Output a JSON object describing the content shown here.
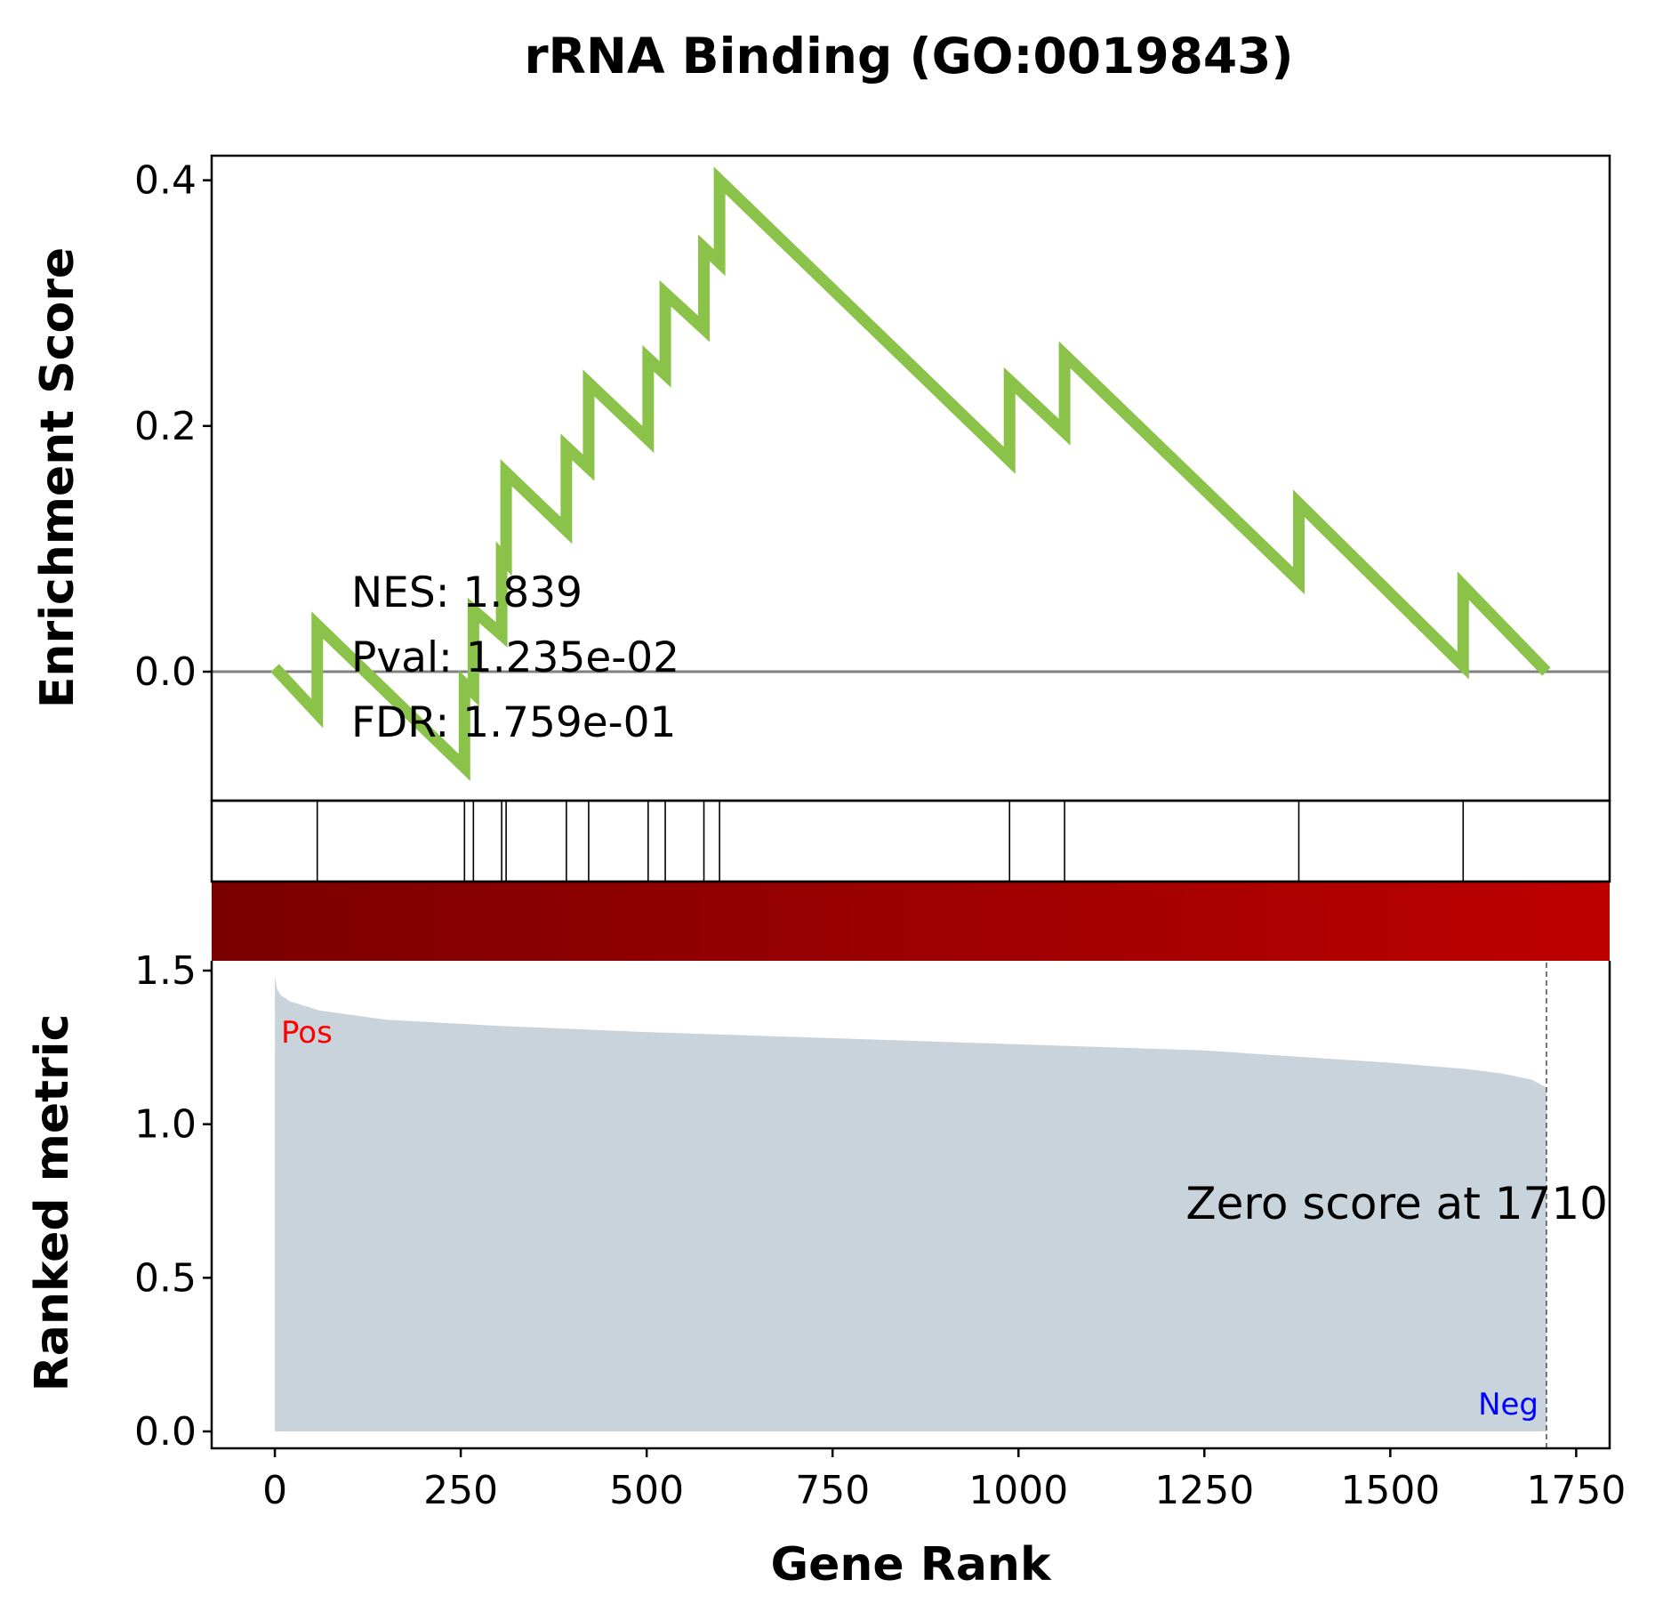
{
  "chart_data": {
    "type": "line",
    "title": "rRNA Binding (GO:0019843)",
    "xlabel": "Gene Rank",
    "xlim": [
      -85,
      1795
    ],
    "xticks": [
      0,
      250,
      500,
      750,
      1000,
      1250,
      1500,
      1750
    ],
    "xtick_labels": [
      "0",
      "250",
      "500",
      "750",
      "1000",
      "1250",
      "1500",
      "1750"
    ],
    "enrichment": {
      "ylabel": "Enrichment Score",
      "ylim": [
        -0.105,
        0.42
      ],
      "yticks": [
        0.0,
        0.2,
        0.4
      ],
      "ytick_labels": [
        "0.0",
        "0.2",
        "0.4"
      ],
      "line_color": "#8bc34a",
      "baseline_color": "#808080",
      "points": [
        [
          0,
          0.003
        ],
        [
          57,
          -0.034
        ],
        [
          57,
          0.038
        ],
        [
          255,
          -0.078
        ],
        [
          255,
          -0.01
        ],
        [
          267,
          -0.017
        ],
        [
          267,
          0.05
        ],
        [
          305,
          0.03
        ],
        [
          305,
          0.094
        ],
        [
          311,
          0.09
        ],
        [
          311,
          0.162
        ],
        [
          392,
          0.115
        ],
        [
          392,
          0.183
        ],
        [
          422,
          0.166
        ],
        [
          422,
          0.235
        ],
        [
          502,
          0.189
        ],
        [
          502,
          0.255
        ],
        [
          525,
          0.242
        ],
        [
          525,
          0.308
        ],
        [
          577,
          0.279
        ],
        [
          577,
          0.345
        ],
        [
          598,
          0.333
        ],
        [
          598,
          0.4
        ],
        [
          988,
          0.172
        ],
        [
          988,
          0.237
        ],
        [
          1062,
          0.195
        ],
        [
          1062,
          0.258
        ],
        [
          1377,
          0.074
        ],
        [
          1377,
          0.137
        ],
        [
          1598,
          0.005
        ],
        [
          1598,
          0.07
        ],
        [
          1710,
          0.0
        ]
      ],
      "stats": {
        "nes": "NES: 1.839",
        "pval": "Pval: 1.235e-02",
        "fdr": "FDR: 1.759e-01"
      }
    },
    "hits": [
      57,
      255,
      267,
      305,
      311,
      392,
      422,
      502,
      525,
      577,
      598,
      988,
      1062,
      1377,
      1598
    ],
    "color_bar": {
      "colors": [
        "#7a0000",
        "#bd0000"
      ]
    },
    "ranked_metric": {
      "ylabel": "Ranked metric",
      "ylim": [
        -0.03,
        1.55
      ],
      "yticks": [
        0.0,
        0.5,
        1.0,
        1.5
      ],
      "ytick_labels": [
        "0.0",
        "0.5",
        "1.0",
        "1.5"
      ],
      "fill_color": "#c8d3dc",
      "points": [
        [
          0,
          1.48
        ],
        [
          3,
          1.44
        ],
        [
          8,
          1.42
        ],
        [
          20,
          1.4
        ],
        [
          60,
          1.37
        ],
        [
          150,
          1.34
        ],
        [
          300,
          1.32
        ],
        [
          500,
          1.3
        ],
        [
          750,
          1.28
        ],
        [
          1000,
          1.26
        ],
        [
          1250,
          1.24
        ],
        [
          1500,
          1.2
        ],
        [
          1600,
          1.18
        ],
        [
          1650,
          1.165
        ],
        [
          1690,
          1.145
        ],
        [
          1710,
          1.12
        ]
      ],
      "zero_score_rank": 1710,
      "zero_score_label": "Zero score at 1710",
      "pos_label": "Pos",
      "pos_color": "#ff0000",
      "neg_label": "Neg",
      "neg_color": "#0000ff"
    }
  }
}
